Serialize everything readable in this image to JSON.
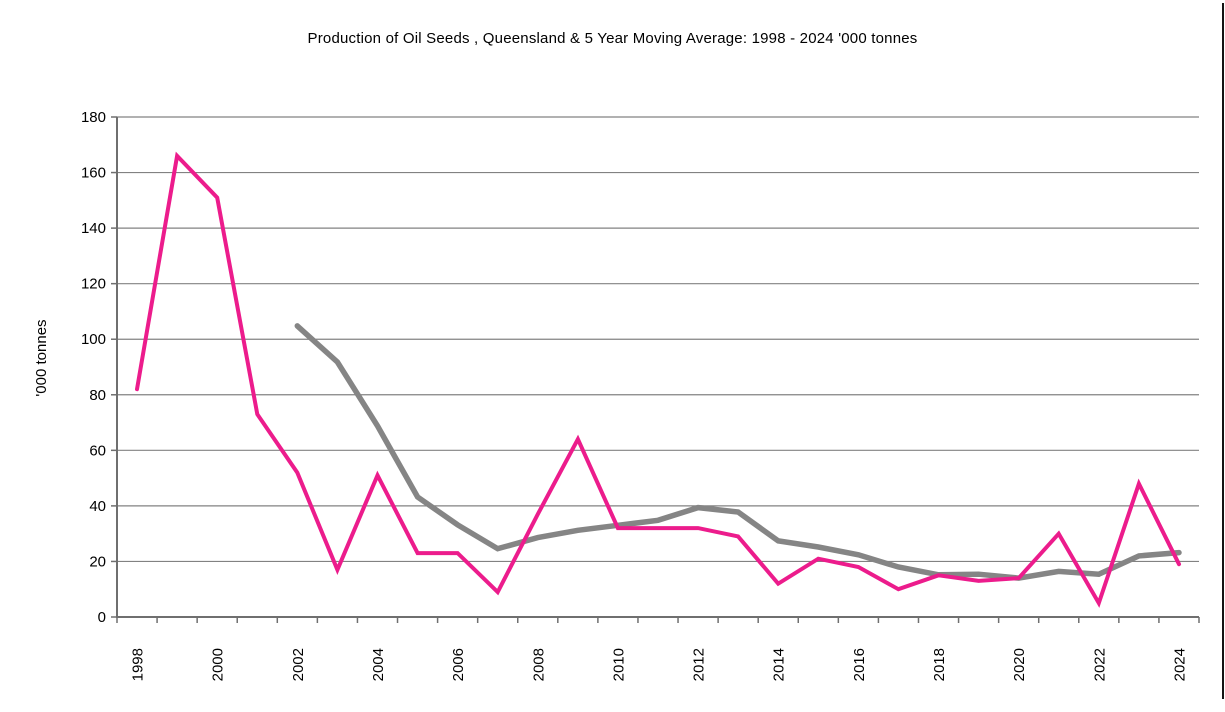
{
  "chart_data": {
    "type": "line",
    "title": "Production of Oil Seeds , Queensland & 5 Year Moving Average: 1998 - 2024 '000 tonnes",
    "xlabel": "",
    "ylabel": "'000 tonnes",
    "ylim": [
      0,
      180
    ],
    "ytick_step": 20,
    "ytick_labels": [
      "0",
      "20",
      "40",
      "60",
      "80",
      "100",
      "120",
      "140",
      "160",
      "180"
    ],
    "grid": "horizontal",
    "legend": "none",
    "x": [
      1998,
      1999,
      2000,
      2001,
      2002,
      2003,
      2004,
      2005,
      2006,
      2007,
      2008,
      2009,
      2010,
      2011,
      2012,
      2013,
      2014,
      2015,
      2016,
      2017,
      2018,
      2019,
      2020,
      2021,
      2022,
      2023,
      2024
    ],
    "xtick_labels_shown": [
      "1998",
      "2000",
      "2002",
      "2004",
      "2006",
      "2008",
      "2010",
      "2012",
      "2014",
      "2016",
      "2018",
      "2020",
      "2022",
      "2024"
    ],
    "series": [
      {
        "name": "5 Year Moving Average",
        "color": "#858585",
        "line_width": 5.5,
        "values": [
          null,
          null,
          null,
          null,
          104.8,
          91.8,
          68.8,
          43.2,
          33.2,
          24.6,
          28.6,
          31.2,
          33,
          34.8,
          39.4,
          37.8,
          27.4,
          25.2,
          22.4,
          18,
          15.2,
          15.4,
          14,
          16.4,
          15.4,
          22,
          23.2
        ]
      },
      {
        "name": "Production of Oil Seeds",
        "color": "#EC1C8C",
        "line_width": 4,
        "values": [
          82,
          166,
          151,
          73,
          52,
          17,
          51,
          23,
          23,
          9,
          37,
          64,
          32,
          32,
          32,
          29,
          12,
          21,
          18,
          10,
          15,
          13,
          14,
          30,
          5,
          48,
          19
        ]
      }
    ],
    "axis_color": "#6f6f6f",
    "grid_color": "#828282",
    "text_color": "#000000"
  }
}
